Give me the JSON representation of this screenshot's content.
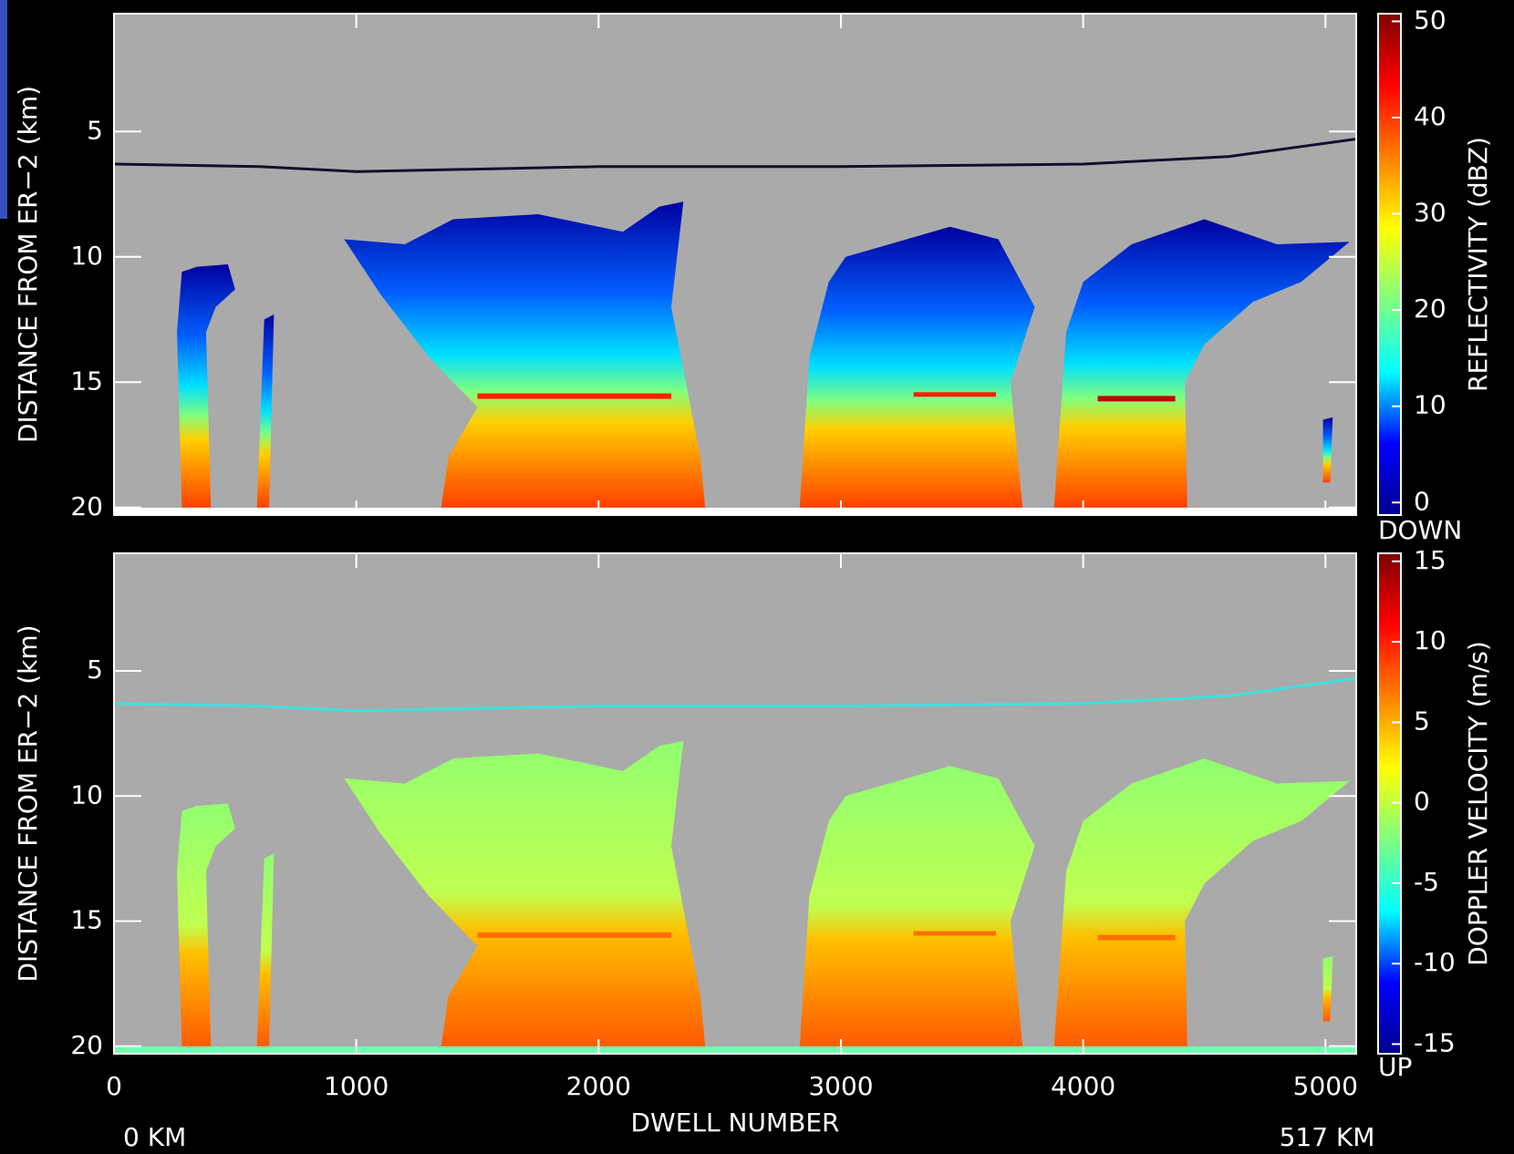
{
  "chart_data": [
    {
      "type": "heatmap",
      "ylabel": "DISTANCE FROM ER−2 (km)",
      "ylim": [
        0.3,
        20.3
      ],
      "y_inverted": true,
      "yticks": [
        5,
        10,
        15,
        20
      ],
      "xlim": [
        0,
        5127
      ],
      "xticks": [
        0,
        1000,
        2000,
        3000,
        4000,
        5000
      ],
      "colorbar": {
        "label": "REFLECTIVITY (dBZ)",
        "lim": [
          -1.3,
          50.8
        ],
        "ticks": [
          0,
          10,
          20,
          30,
          40,
          50
        ]
      },
      "colormap": [
        "#00008f",
        "#0000ff",
        "#00ffff",
        "#7fff7f",
        "#ffff00",
        "#ff7f00",
        "#ff0000",
        "#7f0000"
      ]
    },
    {
      "type": "heatmap",
      "ylabel": "DISTANCE FROM ER−2 (km)",
      "ylim": [
        0.3,
        20.3
      ],
      "y_inverted": true,
      "yticks": [
        5,
        10,
        15,
        20
      ],
      "xlim": [
        0,
        5127
      ],
      "xticks": [
        0,
        1000,
        2000,
        3000,
        4000,
        5000
      ],
      "xlabel": "DWELL NUMBER",
      "annotations": [
        "0 KM",
        "517 KM"
      ],
      "colorbar": {
        "label": "DOPPLER VELOCITY (m/s)",
        "lim": [
          -15.6,
          15.5
        ],
        "ticks": [
          -15,
          -10,
          -5,
          0,
          5,
          10,
          15
        ],
        "top_label": "DOWN",
        "bottom_label": "UP"
      },
      "colormap": [
        "#00008f",
        "#0000ff",
        "#00ffff",
        "#7fff7f",
        "#ffff00",
        "#ff7f00",
        "#ff0000",
        "#7f0000"
      ]
    }
  ]
}
